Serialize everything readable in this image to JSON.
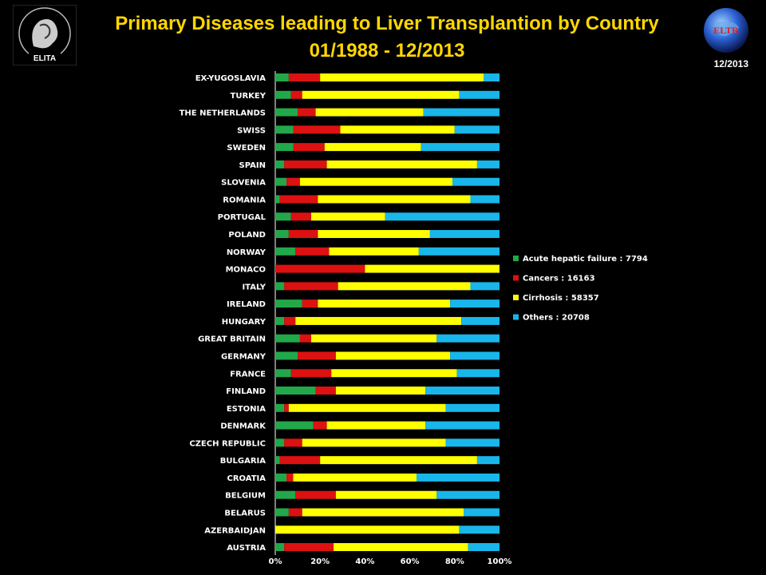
{
  "header": {
    "title_line1": "Primary Diseases leading to Liver Transplantion by Country",
    "title_line2": "01/1988 - 12/2013",
    "date": "12/2013",
    "left_logo_text": "ELITA",
    "right_logo_text": "ELTR"
  },
  "colors": {
    "background": "#000000",
    "title": "#ffd700",
    "acute": "#22a84a",
    "cancers": "#dd1111",
    "cirrhosis": "#ffff00",
    "others": "#19b6ea"
  },
  "chart_data": {
    "type": "bar",
    "orientation": "horizontal",
    "stacked": "percent",
    "categories": [
      "EX-YUGOSLAVIA",
      "TURKEY",
      "THE NETHERLANDS",
      "SWISS",
      "SWEDEN",
      "SPAIN",
      "SLOVENIA",
      "ROMANIA",
      "PORTUGAL",
      "POLAND",
      "NORWAY",
      "MONACO",
      "ITALY",
      "IRELAND",
      "HUNGARY",
      "GREAT BRITAIN",
      "GERMANY",
      "FRANCE",
      "FINLAND",
      "ESTONIA",
      "DENMARK",
      "CZECH REPUBLIC",
      "BULGARIA",
      "CROATIA",
      "BELGIUM",
      "BELARUS",
      "AZERBAIDJAN",
      "AUSTRIA"
    ],
    "series": [
      {
        "name": "Acute hepatic failure : 7794",
        "color": "#22a84a",
        "values": [
          6,
          7,
          10,
          8,
          8,
          4,
          5,
          2,
          7,
          6,
          9,
          0,
          4,
          12,
          4,
          11,
          10,
          7,
          18,
          4,
          17,
          4,
          2,
          5,
          9,
          6,
          0,
          4
        ]
      },
      {
        "name": "Cancers : 16163",
        "color": "#dd1111",
        "values": [
          14,
          5,
          8,
          21,
          14,
          19,
          6,
          17,
          9,
          13,
          15,
          40,
          24,
          7,
          5,
          5,
          17,
          18,
          9,
          2,
          6,
          8,
          18,
          3,
          18,
          6,
          0,
          22
        ]
      },
      {
        "name": "Cirrhosis : 58357",
        "color": "#ffff00",
        "values": [
          73,
          70,
          48,
          51,
          43,
          67,
          68,
          68,
          33,
          50,
          40,
          60,
          59,
          59,
          74,
          56,
          51,
          56,
          40,
          70,
          44,
          64,
          70,
          55,
          45,
          72,
          82,
          60
        ]
      },
      {
        "name": "Others : 20708",
        "color": "#19b6ea",
        "values": [
          7,
          18,
          34,
          20,
          35,
          10,
          21,
          13,
          51,
          31,
          36,
          0,
          13,
          22,
          17,
          28,
          22,
          19,
          33,
          24,
          33,
          24,
          10,
          37,
          28,
          16,
          18,
          14
        ]
      }
    ],
    "xticks": [
      "0%",
      "20%",
      "40%",
      "60%",
      "80%",
      "100%"
    ],
    "xlim": [
      0,
      100
    ],
    "legend_position": "right"
  }
}
